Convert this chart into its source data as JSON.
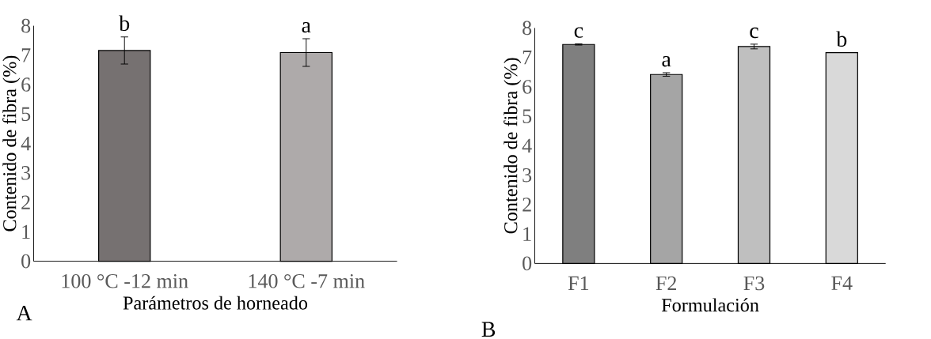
{
  "chart_data": [
    {
      "type": "bar",
      "xlabel": "Parámetros de horneado",
      "ylabel": "Contenido de fibra (%)",
      "categories": [
        "100 °C -12 min",
        "140 °C -7 min"
      ],
      "values": [
        7.16,
        7.09
      ],
      "errors": [
        0.46,
        0.47
      ],
      "colors": [
        "#767171",
        "#aeaaaa"
      ],
      "ylim": [
        0,
        8
      ],
      "yticks": [
        0,
        1,
        2,
        3,
        4,
        5,
        6,
        7,
        8
      ],
      "annotations": [
        {
          "text": "b",
          "x": "100 °C -12 min",
          "y": 7.62
        },
        {
          "text": "a",
          "x": "140 °C -7 min",
          "y": 7.56
        },
        "A"
      ]
    },
    {
      "type": "bar",
      "xlabel": "Formulación",
      "ylabel": "Contenido de fibra (%)",
      "categories": [
        "F1",
        "F2",
        "F3",
        "F4"
      ],
      "values": [
        7.44,
        6.42,
        7.37,
        7.16
      ],
      "errors": [
        0.02,
        0.06,
        0.08,
        null
      ],
      "colors": [
        "#7f7f7f",
        "#a5a5a5",
        "#bfbfbf",
        "#d9d9d9"
      ],
      "ylim": [
        0,
        8
      ],
      "yticks": [
        0,
        1,
        2,
        3,
        4,
        5,
        6,
        7,
        8
      ],
      "annotations": [
        {
          "text": "c",
          "x": "F1",
          "y": 7.46
        },
        {
          "text": "a",
          "x": "F2",
          "y": 6.48
        },
        {
          "text": "c",
          "x": "F3",
          "y": 7.45
        },
        {
          "text": "b",
          "x": "F4",
          "y": 7.16
        },
        "B"
      ]
    }
  ]
}
